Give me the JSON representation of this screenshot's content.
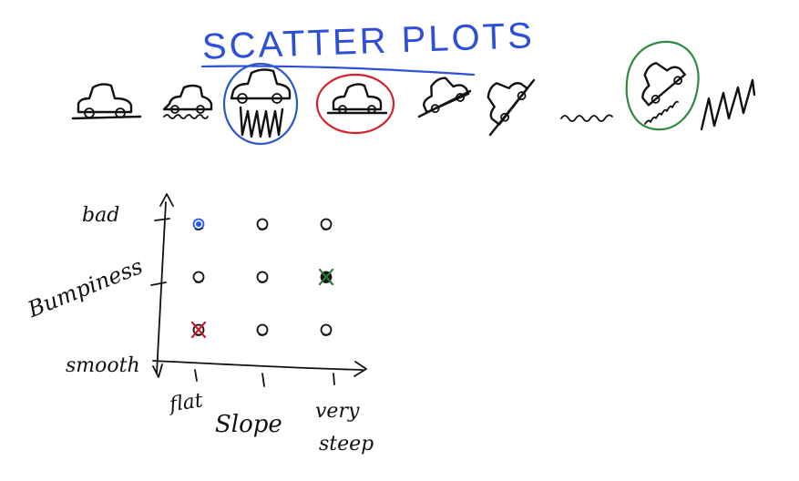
{
  "title": "SCATTER PLOTS",
  "colors": {
    "title_blue": "#2f4fd6",
    "ink": "#111111",
    "circle_blue": "#2b57c8",
    "circle_red": "#d3202a",
    "circle_green": "#2e8b3d",
    "mark_red": "#c81e2a",
    "mark_green": "#2a7a35",
    "selected_point": "#2b57ff"
  },
  "cars": [
    {
      "id": "car-flat-smooth",
      "terrain": "flat-smooth",
      "circle": null,
      "icon": "car-on-flat-road-icon"
    },
    {
      "id": "car-flat-bumpy",
      "terrain": "flat-bumpy",
      "circle": null,
      "icon": "car-on-bumpy-road-icon"
    },
    {
      "id": "car-flat-very-bumpy",
      "terrain": "flat-very-bumpy",
      "circle": "blue",
      "icon": "car-on-very-bumpy-road-icon"
    },
    {
      "id": "car-flat-smooth-2",
      "terrain": "flat-smooth",
      "circle": "red",
      "icon": "car-on-flat-road-icon"
    },
    {
      "id": "car-slope-smooth",
      "terrain": "slope",
      "circle": null,
      "icon": "car-on-slope-icon"
    },
    {
      "id": "car-steep-smooth",
      "terrain": "steep",
      "circle": null,
      "icon": "car-on-steep-slope-icon"
    },
    {
      "id": "bumpy-line-small",
      "terrain": "squiggle",
      "circle": null,
      "icon": "bumpy-line-icon"
    },
    {
      "id": "car-steep-bumpy",
      "terrain": "steep-bumpy",
      "circle": "green",
      "icon": "car-on-steep-bumpy-slope-icon"
    },
    {
      "id": "very-bumpy-line",
      "terrain": "big-squiggle",
      "circle": null,
      "icon": "very-bumpy-line-icon"
    }
  ],
  "chart_data": {
    "type": "scatter",
    "title": "",
    "xlabel": "Slope",
    "ylabel": "Bumpiness",
    "x_ticks": [
      "flat",
      "",
      "very steep"
    ],
    "y_ticks": [
      "smooth",
      "",
      "bad"
    ],
    "xlim": [
      0,
      2
    ],
    "ylim": [
      0,
      2
    ],
    "grid": false,
    "points": [
      {
        "x": 0,
        "y": 2,
        "mark": "selected"
      },
      {
        "x": 1,
        "y": 2,
        "mark": "open"
      },
      {
        "x": 2,
        "y": 2,
        "mark": "open"
      },
      {
        "x": 0,
        "y": 1,
        "mark": "open"
      },
      {
        "x": 1,
        "y": 1,
        "mark": "open"
      },
      {
        "x": 2,
        "y": 1,
        "mark": "green-x"
      },
      {
        "x": 0,
        "y": 0,
        "mark": "red-x"
      },
      {
        "x": 1,
        "y": 0,
        "mark": "open"
      },
      {
        "x": 2,
        "y": 0,
        "mark": "open"
      }
    ]
  }
}
